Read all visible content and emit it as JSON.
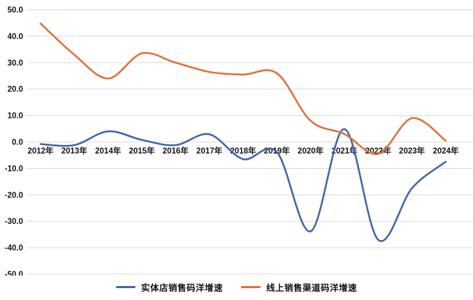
{
  "chart_data": {
    "type": "line",
    "smooth": true,
    "title": "",
    "xlabel": "",
    "ylabel": "",
    "grid": "horizontal",
    "grid_color": "#d9d9d9",
    "legend_position": "bottom",
    "ylim": [
      -50,
      50
    ],
    "ytick_step": 10,
    "ytick_labels": [
      "50.0",
      "40.0",
      "30.0",
      "20.0",
      "10.0",
      "0.0",
      "-10.0",
      "-20.0",
      "-30.0",
      "-40.0",
      "-50.0"
    ],
    "categories": [
      "2012年",
      "2013年",
      "2014年",
      "2015年",
      "2016年",
      "2017年",
      "2018年",
      "2019年",
      "2020年",
      "2021年",
      "2022年",
      "2023年",
      "2024年"
    ],
    "series": [
      {
        "name": "实体店销售码洋增速",
        "color": "#4165AC",
        "values": [
          -0.8,
          -1.2,
          4.0,
          0.8,
          -1.2,
          2.9,
          -6.5,
          -3.8,
          -33.8,
          4.9,
          -37.0,
          -17.5,
          -7.5
        ]
      },
      {
        "name": "线上销售渠道码洋增速",
        "color": "#E06F38",
        "values": [
          44.8,
          33.0,
          24.0,
          33.5,
          30.0,
          26.5,
          25.5,
          26.0,
          8.0,
          3.0,
          -4.5,
          9.0,
          0.5
        ]
      }
    ]
  }
}
